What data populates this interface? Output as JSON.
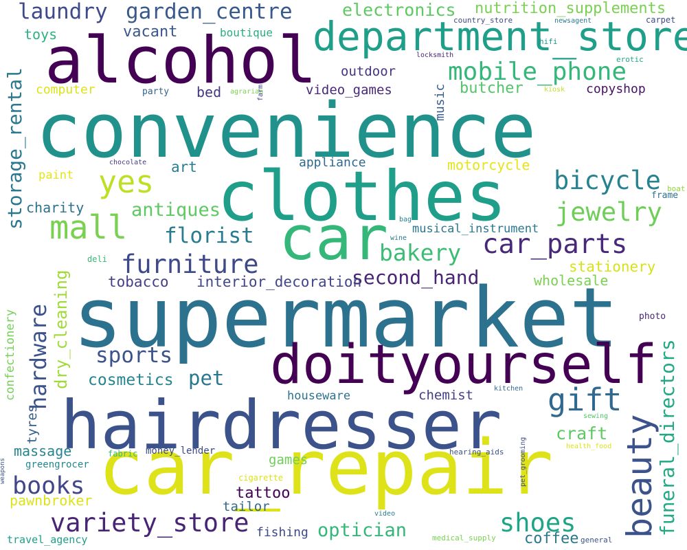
{
  "words": [
    {
      "text": "convenience",
      "color": "#21918c"
    },
    {
      "text": "supermarket",
      "color": "#2c728e"
    },
    {
      "text": "car_repair",
      "color": "#dde318"
    },
    {
      "text": "hairdresser",
      "color": "#3b528b"
    },
    {
      "text": "clothes",
      "color": "#1f9e89"
    },
    {
      "text": "alcohol",
      "color": "#440154"
    },
    {
      "text": "car",
      "color": "#35b779"
    },
    {
      "text": "doityourself",
      "color": "#440154"
    },
    {
      "text": "department_store",
      "color": "#1f9e89"
    },
    {
      "text": "mobile_phone",
      "color": "#35b779"
    },
    {
      "text": "beauty",
      "color": "#3b528b"
    },
    {
      "text": "mall",
      "color": "#7ad151"
    },
    {
      "text": "yes",
      "color": "#bddf26"
    },
    {
      "text": "gift",
      "color": "#31688e"
    },
    {
      "text": "bicycle",
      "color": "#26828e"
    },
    {
      "text": "car_parts",
      "color": "#482878"
    },
    {
      "text": "jewelry",
      "color": "#6ece58"
    },
    {
      "text": "furniture",
      "color": "#3e4989"
    },
    {
      "text": "variety_store",
      "color": "#482475"
    },
    {
      "text": "hardware",
      "color": "#3b528b"
    },
    {
      "text": "laundry",
      "color": "#3e4a89"
    },
    {
      "text": "garden_centre",
      "color": "#38598c"
    },
    {
      "text": "bakery",
      "color": "#3dbc74"
    },
    {
      "text": "florist",
      "color": "#287c8e"
    },
    {
      "text": "antiques",
      "color": "#5ec962"
    },
    {
      "text": "second_hand",
      "color": "#482475"
    },
    {
      "text": "sports",
      "color": "#3b528b"
    },
    {
      "text": "shoes",
      "color": "#20a486"
    },
    {
      "text": "books",
      "color": "#404688"
    },
    {
      "text": "optician",
      "color": "#35b779"
    },
    {
      "text": "funeral_directors",
      "color": "#22a884"
    },
    {
      "text": "storage_rental",
      "color": "#2a788e"
    },
    {
      "text": "dry_cleaning",
      "color": "#a0da39"
    },
    {
      "text": "electronics",
      "color": "#5ec962"
    },
    {
      "text": "nutrition_supplements",
      "color": "#7ad151"
    },
    {
      "text": "pet",
      "color": "#2a788e"
    },
    {
      "text": "craft",
      "color": "#5ec962"
    },
    {
      "text": "cosmetics",
      "color": "#25848e"
    },
    {
      "text": "tobacco",
      "color": "#433e85"
    },
    {
      "text": "interior_decoration",
      "color": "#404688"
    },
    {
      "text": "stationery",
      "color": "#d8e219"
    },
    {
      "text": "wholesale",
      "color": "#7ad151"
    },
    {
      "text": "tattoo",
      "color": "#440154"
    },
    {
      "text": "tailor",
      "color": "#31688e"
    },
    {
      "text": "coffee",
      "color": "#2a788e"
    },
    {
      "text": "massage",
      "color": "#25848e"
    },
    {
      "text": "pawnbroker",
      "color": "#dde318"
    },
    {
      "text": "charity",
      "color": "#2c728e"
    },
    {
      "text": "art",
      "color": "#287d8e"
    },
    {
      "text": "motorcycle",
      "color": "#e5e419"
    },
    {
      "text": "appliance",
      "color": "#31688e"
    },
    {
      "text": "vacant",
      "color": "#39568c"
    },
    {
      "text": "toys",
      "color": "#2db27d"
    },
    {
      "text": "boutique",
      "color": "#29af7f"
    },
    {
      "text": "outdoor",
      "color": "#46337e"
    },
    {
      "text": "computer",
      "color": "#dde318"
    },
    {
      "text": "bed",
      "color": "#453781"
    },
    {
      "text": "video_games",
      "color": "#482878"
    },
    {
      "text": "butcher",
      "color": "#52c569"
    },
    {
      "text": "copyshop",
      "color": "#471164"
    },
    {
      "text": "music",
      "color": "#365c8d"
    },
    {
      "text": "musical_instrument",
      "color": "#2a788e"
    },
    {
      "text": "houseware",
      "color": "#2c728e"
    },
    {
      "text": "chemist",
      "color": "#433e85"
    },
    {
      "text": "games",
      "color": "#6ece58"
    },
    {
      "text": "fishing",
      "color": "#3e4989"
    },
    {
      "text": "tyres",
      "color": "#365c8d"
    },
    {
      "text": "confectionery",
      "color": "#73d056"
    },
    {
      "text": "paint",
      "color": "#e5e419"
    },
    {
      "text": "money_lender",
      "color": "#3e4989"
    },
    {
      "text": "greengrocer",
      "color": "#24868e"
    },
    {
      "text": "travel_agency",
      "color": "#1f9e89"
    },
    {
      "text": "fabric",
      "color": "#38b977"
    },
    {
      "text": "party",
      "color": "#33638d"
    },
    {
      "text": "photo",
      "color": "#482576"
    },
    {
      "text": "frame",
      "color": "#2d708e"
    },
    {
      "text": "country_store",
      "color": "#3e4989"
    },
    {
      "text": "newsagent",
      "color": "#2a788e"
    },
    {
      "text": "carpet",
      "color": "#3e4a89"
    },
    {
      "text": "hifi",
      "color": "#1f968b"
    },
    {
      "text": "erotic",
      "color": "#21a685"
    },
    {
      "text": "locksmith",
      "color": "#482576"
    },
    {
      "text": "agrarian",
      "color": "#7ad151"
    },
    {
      "text": "farm",
      "color": "#3f4788"
    },
    {
      "text": "kiosk",
      "color": "#c2df23"
    },
    {
      "text": "chocolate",
      "color": "#443983"
    },
    {
      "text": "bag",
      "color": "#26828e"
    },
    {
      "text": "wine",
      "color": "#2a788e"
    },
    {
      "text": "deli",
      "color": "#38b977"
    },
    {
      "text": "boat",
      "color": "#90d743"
    },
    {
      "text": "kitchen",
      "color": "#31688e"
    },
    {
      "text": "sewing",
      "color": "#52c569"
    },
    {
      "text": "health_food",
      "color": "#dde318"
    },
    {
      "text": "hearing_aids",
      "color": "#3b528b"
    },
    {
      "text": "pet_grooming",
      "color": "#3e4989"
    },
    {
      "text": "cigarette",
      "color": "#dde318"
    },
    {
      "text": "video",
      "color": "#2a788e"
    },
    {
      "text": "medical_supply",
      "color": "#7ad151"
    },
    {
      "text": "general",
      "color": "#3b528b"
    },
    {
      "text": "weapons",
      "color": "#3b528b"
    }
  ]
}
